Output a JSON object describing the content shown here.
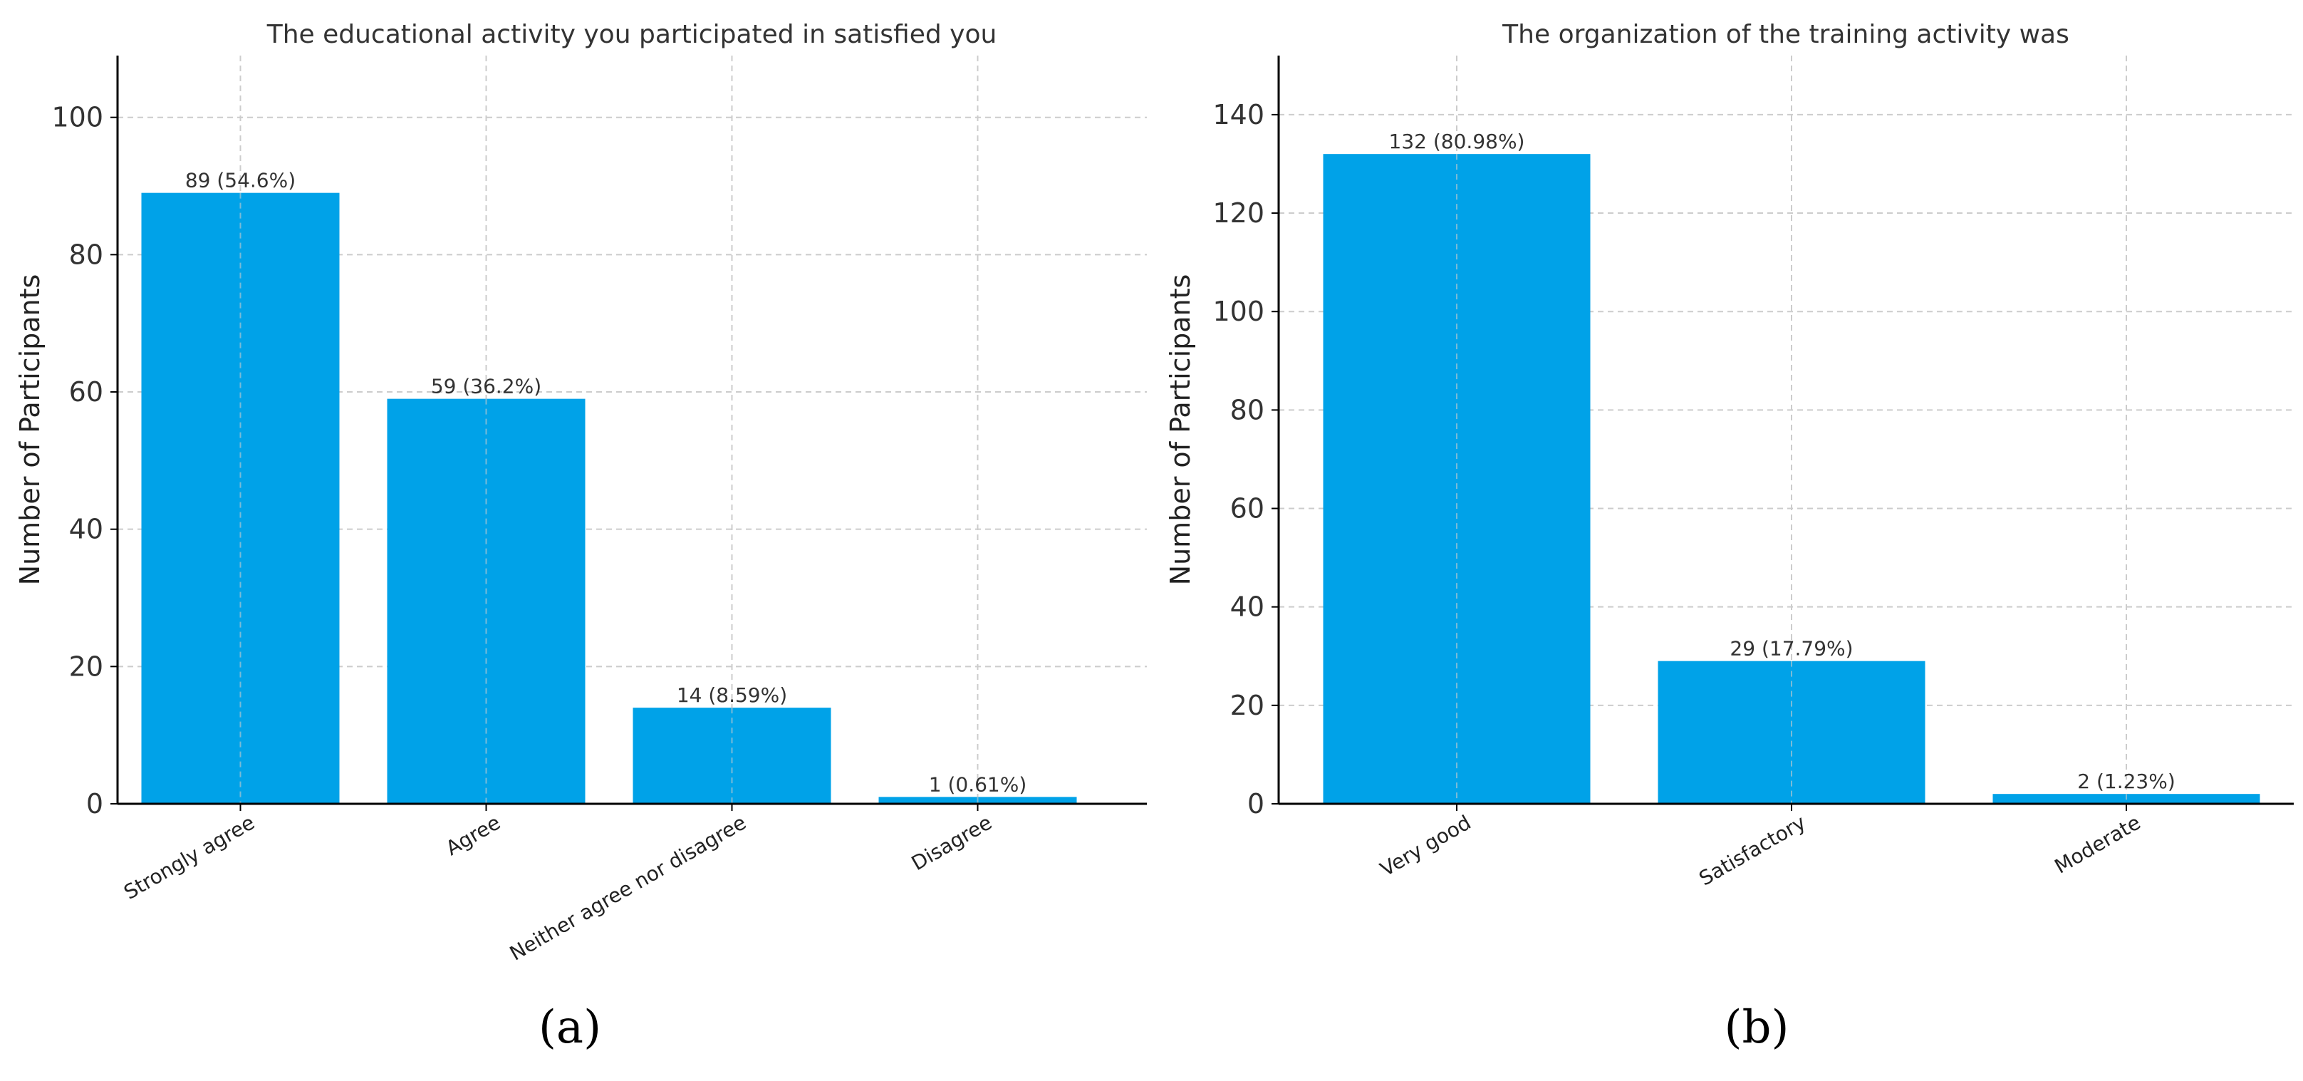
{
  "chart_data": [
    {
      "type": "bar",
      "panel": "(a)",
      "title": "The educational activity you participated in satisfied you",
      "xlabel": "",
      "ylabel": "Number of Participants",
      "categories": [
        "Strongly agree",
        "Agree",
        "Neither agree nor disagree",
        "Disagree"
      ],
      "values": [
        89,
        59,
        14,
        1
      ],
      "data_labels": [
        "89 (54.6%)",
        "59 (36.2%)",
        "14 (8.59%)",
        "1 (0.61%)"
      ],
      "ylim": [
        0,
        109
      ],
      "yticks": [
        0,
        20,
        40,
        60,
        80,
        100
      ],
      "grid": true,
      "bar_color": "#00a2e8"
    },
    {
      "type": "bar",
      "panel": "(b)",
      "title": "The organization of the training activity was",
      "xlabel": "",
      "ylabel": "Number of Participants",
      "categories": [
        "Very good",
        "Satisfactory",
        "Moderate"
      ],
      "values": [
        132,
        29,
        2
      ],
      "data_labels": [
        "132 (80.98%)",
        "29 (17.79%)",
        "2 (1.23%)"
      ],
      "ylim": [
        0,
        152
      ],
      "yticks": [
        0,
        20,
        40,
        60,
        80,
        100,
        120,
        140
      ],
      "grid": true,
      "bar_color": "#00a2e8"
    }
  ]
}
